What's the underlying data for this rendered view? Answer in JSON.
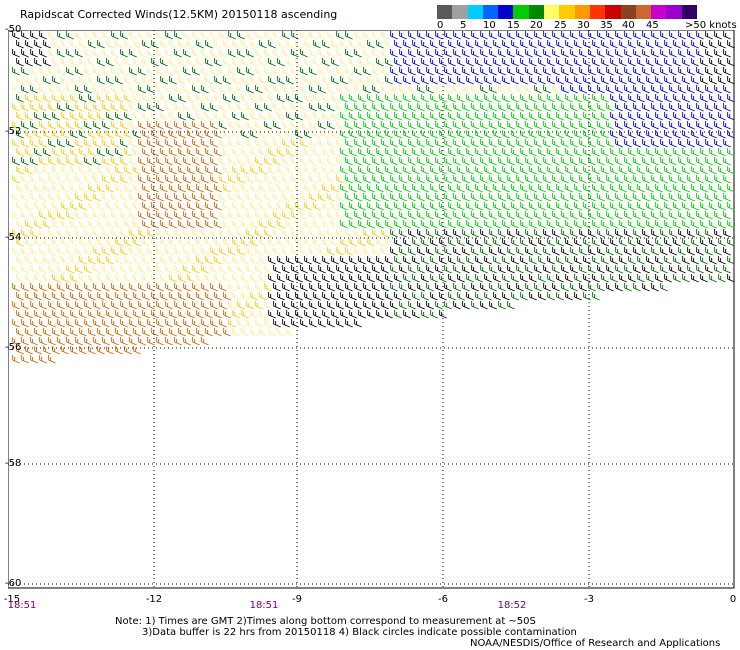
{
  "title": "Rapidscat Corrected Winds(12.5KM) 20150118 ascending",
  "colorbar": {
    "colors": [
      "#5a5a5a",
      "#a0a0a0",
      "#00ccff",
      "#0066ff",
      "#0000cc",
      "#00cc00",
      "#008800",
      "#ffff66",
      "#ffcc00",
      "#ff9900",
      "#ff3300",
      "#cc0000",
      "#884422",
      "#cc6633",
      "#cc00cc",
      "#9900cc",
      "#330066"
    ],
    "ticks": [
      "0",
      "5",
      "10",
      "15",
      "20",
      "25",
      "30",
      "35",
      "40",
      "45",
      ">50 knots"
    ]
  },
  "latitudes": [
    "-50",
    "-52",
    "-54",
    "-56",
    "-58",
    "-60"
  ],
  "longitudes": [
    "-15",
    "-12",
    "-9",
    "-6",
    "-3",
    "0"
  ],
  "times": [
    "18:51",
    "18:51",
    "18:52"
  ],
  "notes": [
    "Note: 1) Times are GMT 2)Times along bottom correspond to measurement at ~50S",
    "3)Data buffer is 22 hrs from 20150118 4) Black circles indicate possible contamination",
    "NOAA/NESDIS/Office of Research and Applications"
  ],
  "wind_colors": {
    "black": "#000000",
    "blue": "#0000cc",
    "darkgreen": "#006600",
    "green": "#00cc00",
    "lightyellow": "#ffee88",
    "yellow": "#ffcc00",
    "orange": "#cc6600"
  }
}
